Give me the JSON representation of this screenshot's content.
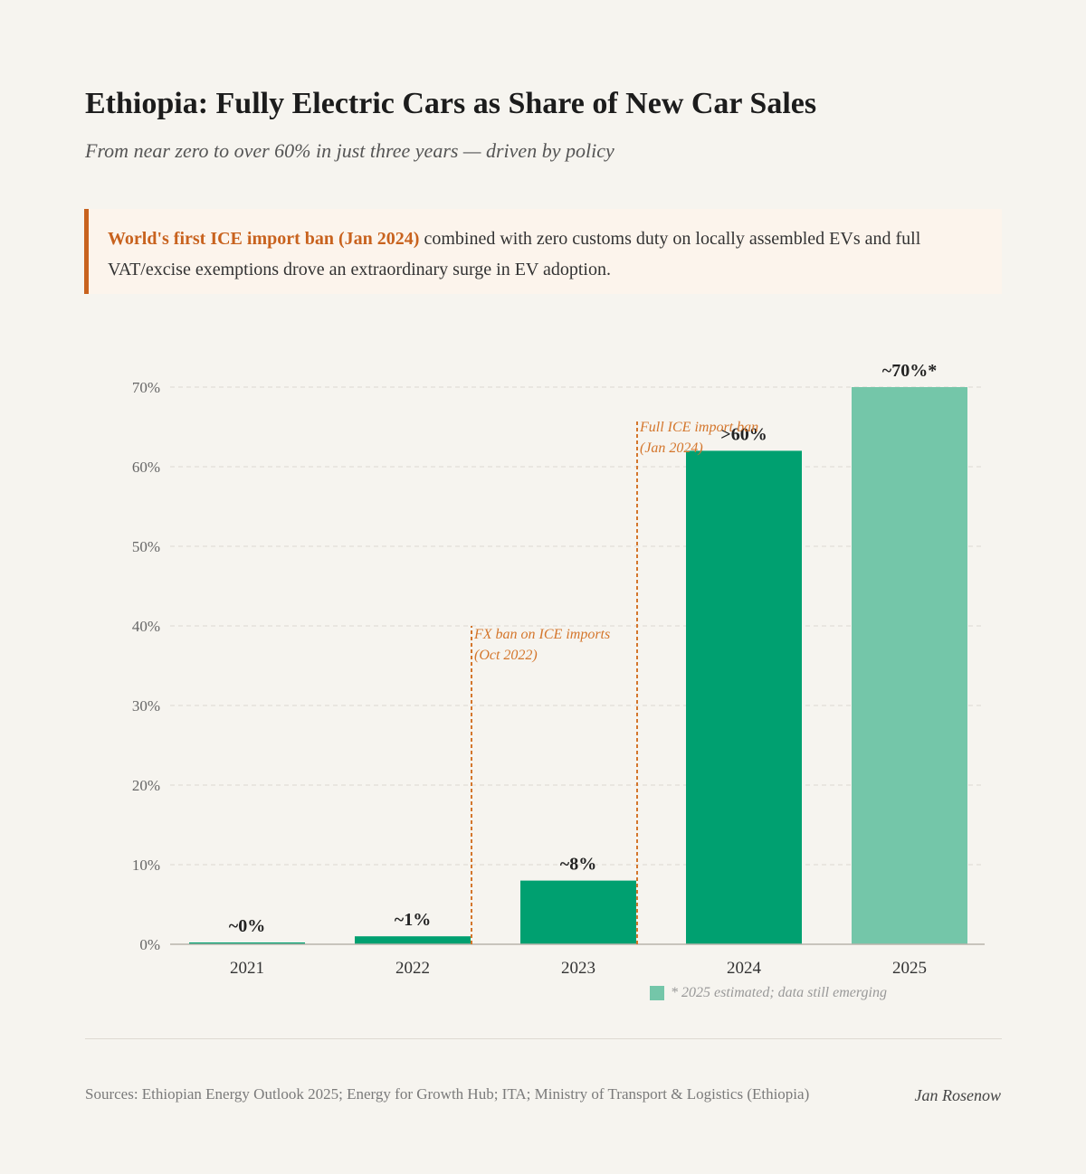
{
  "header": {
    "title": "Ethiopia: Fully Electric Cars as Share of New Car Sales",
    "subtitle": "From near zero to over 60% in just three years — driven by policy"
  },
  "callout": {
    "highlight": "World's first ICE import ban (Jan 2024)",
    "text": " combined with zero customs duty on locally assembled EVs and full VAT/excise exemptions drove an extraordinary surge in EV adoption."
  },
  "chart_data": {
    "type": "bar",
    "categories": [
      "2021",
      "2022",
      "2023",
      "2024",
      "2025"
    ],
    "values": [
      0.2,
      1,
      8,
      62,
      70
    ],
    "data_labels": [
      "~0%",
      "~1%",
      "~8%",
      ">60%",
      "~70%*"
    ],
    "estimated": [
      false,
      false,
      false,
      false,
      true
    ],
    "ylim": [
      0,
      70
    ],
    "yticks": [
      "0%",
      "10%",
      "20%",
      "30%",
      "40%",
      "50%",
      "60%",
      "70%"
    ],
    "grid": true,
    "colors": {
      "actual": "#00a070",
      "estimated": "#74c6a9",
      "annotation": "#d4762c"
    },
    "annotations": [
      {
        "between": [
          "2022",
          "2023"
        ],
        "line_top_value": 40,
        "lines": [
          "FX ban on ICE imports",
          "(Oct 2022)"
        ]
      },
      {
        "between": [
          "2023",
          "2024"
        ],
        "line_top_value": 66,
        "lines": [
          "Full ICE import ban",
          "(Jan 2024)"
        ]
      }
    ],
    "legend": {
      "label": "* 2025 estimated; data still emerging",
      "placement": "bottom-right"
    }
  },
  "footer": {
    "sources": "Sources: Ethiopian Energy Outlook 2025; Energy for Growth Hub; ITA; Ministry of Transport & Logistics (Ethiopia)",
    "author": "Jan Rosenow"
  }
}
